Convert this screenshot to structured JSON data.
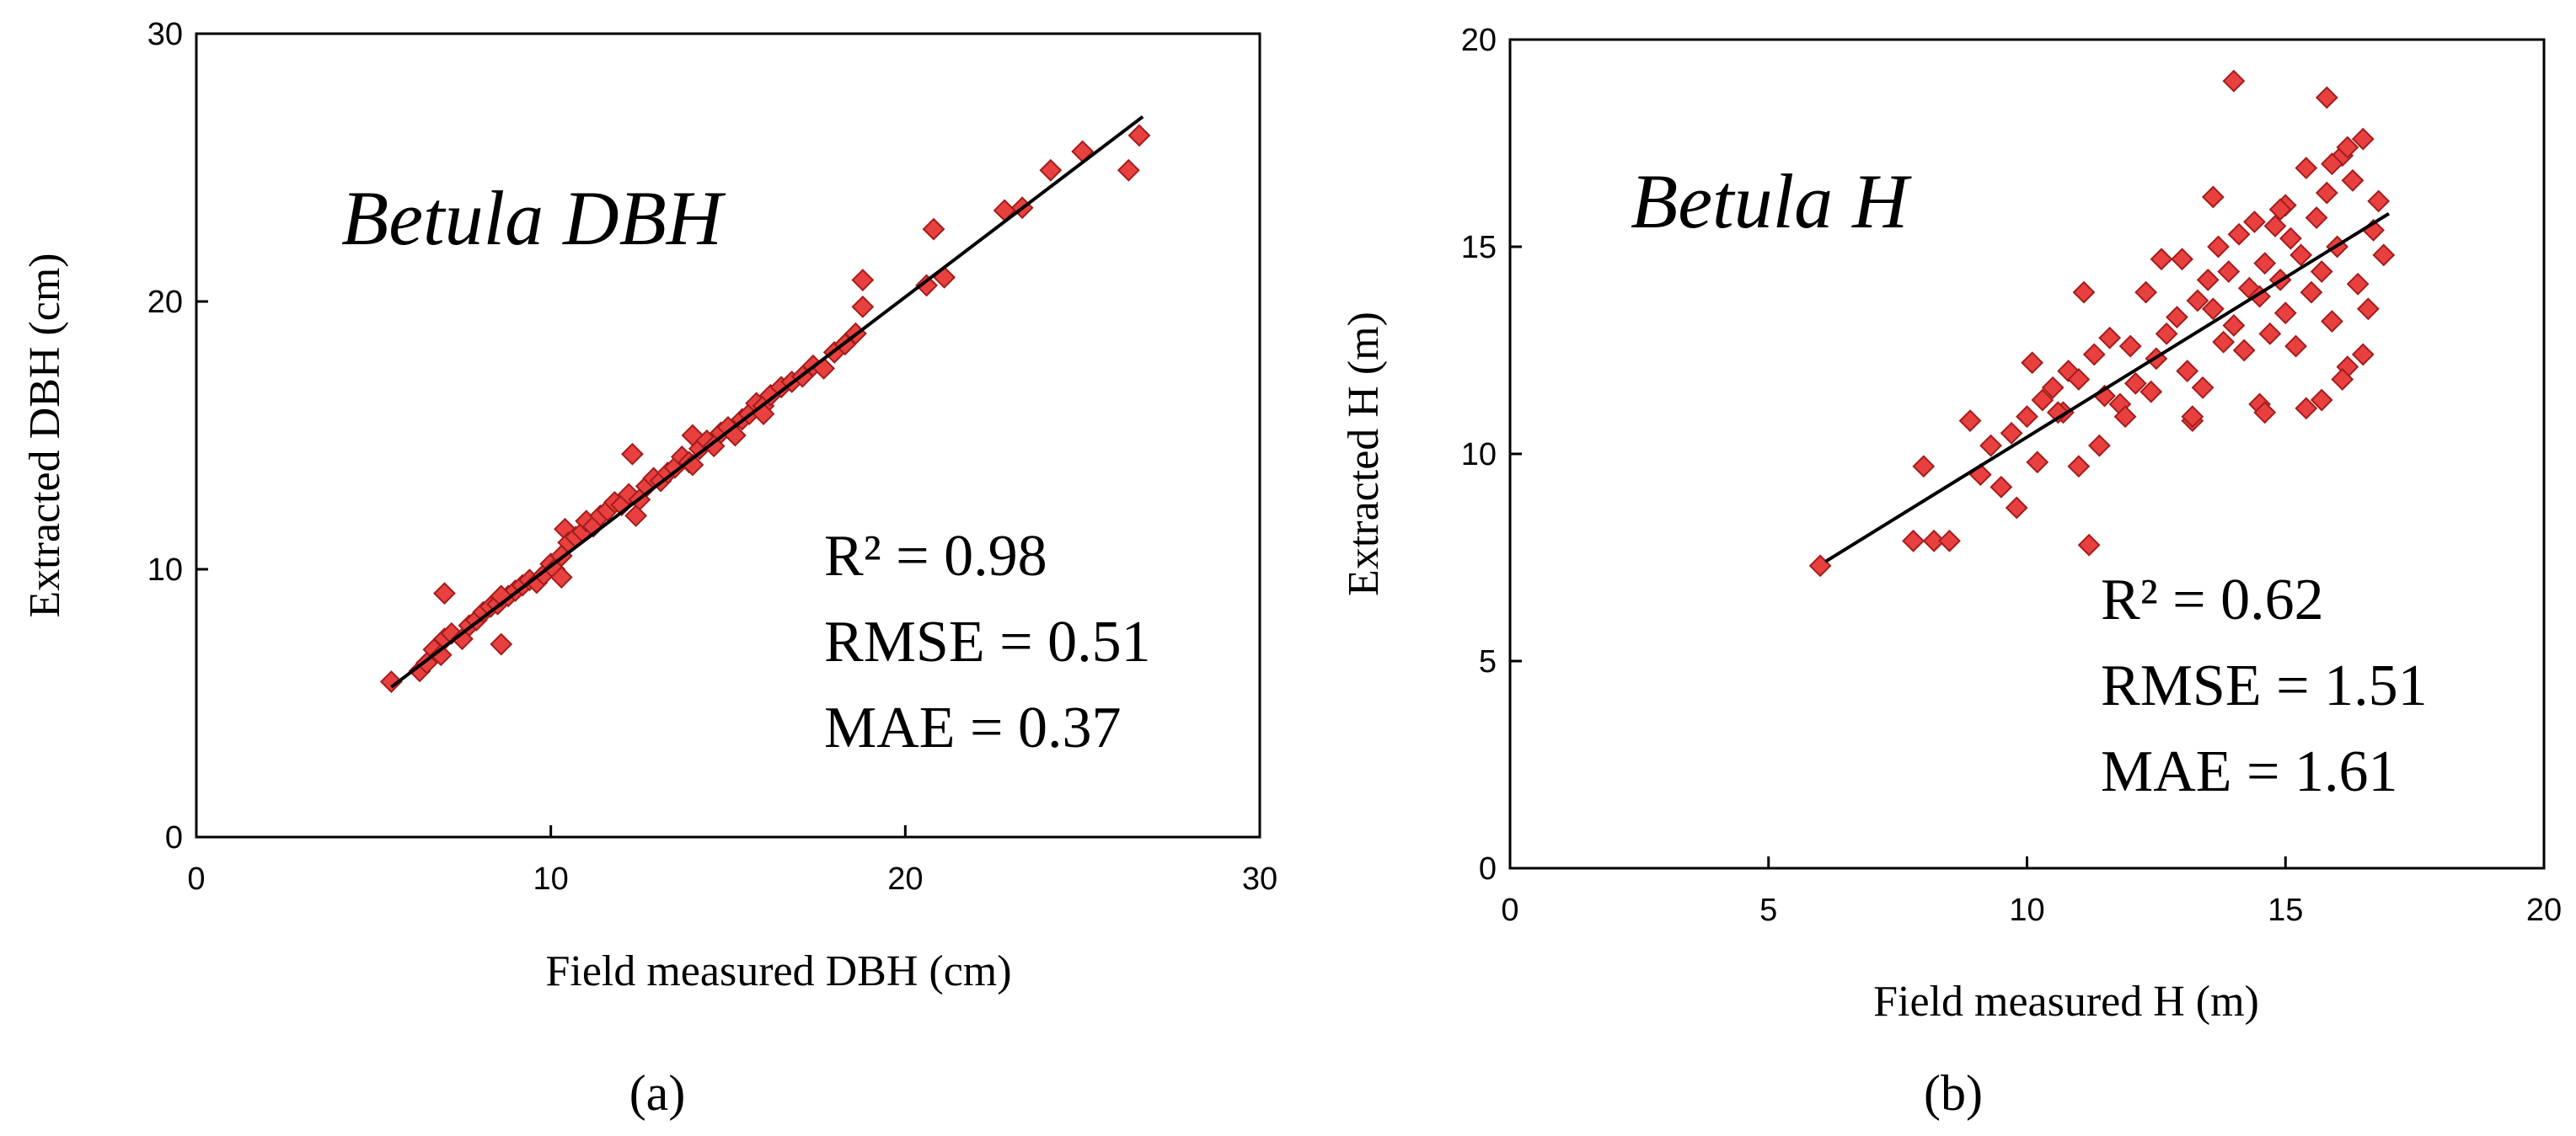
{
  "chart_data": [
    {
      "type": "scatter",
      "title": "Betula DBH",
      "xlabel": "Field measured DBH (cm)",
      "ylabel": "Extracted DBH (cm)",
      "xlim": [
        0,
        30
      ],
      "ylim": [
        0,
        30
      ],
      "xticks": [
        "0",
        "10",
        "20",
        "30"
      ],
      "yticks": [
        "0",
        "10",
        "20",
        "30"
      ],
      "panel_label": "(a)",
      "stats": {
        "r2": "R² = 0.98",
        "rmse": "RMSE = 0.51",
        "mae": "MAE = 0.37"
      },
      "trendline": {
        "x": [
          5.5,
          26.7
        ],
        "y": [
          5.6,
          26.9
        ]
      },
      "series": [
        {
          "name": "Betula DBH",
          "x": [
            5.5,
            6.3,
            6.5,
            6.7,
            6.9,
            7.0,
            7.2,
            7.5,
            7.7,
            7.9,
            8.1,
            8.3,
            8.5,
            8.6,
            8.8,
            9.0,
            9.2,
            9.4,
            9.6,
            9.8,
            10.0,
            10.1,
            10.3,
            10.4,
            10.5,
            10.7,
            10.9,
            11.0,
            11.2,
            11.4,
            11.6,
            11.8,
            12.0,
            12.2,
            12.3,
            12.5,
            12.7,
            12.9,
            13.1,
            13.3,
            13.5,
            13.7,
            13.9,
            14.0,
            14.2,
            14.4,
            14.6,
            14.8,
            15.0,
            15.2,
            15.4,
            15.6,
            15.8,
            16.0,
            16.2,
            16.5,
            16.8,
            17.1,
            17.4,
            17.7,
            18.0,
            18.3,
            18.6,
            18.8,
            18.8,
            20.6,
            20.8,
            21.1,
            22.8,
            23.3,
            24.1,
            25.0,
            26.3,
            26.6,
            7.0,
            8.6,
            10.3,
            12.4,
            14.0,
            16.0
          ],
          "y": [
            5.8,
            6.2,
            6.5,
            7.0,
            6.8,
            7.4,
            7.6,
            7.4,
            7.9,
            8.1,
            8.4,
            8.6,
            8.7,
            7.2,
            9.0,
            9.2,
            9.4,
            9.6,
            9.5,
            9.8,
            10.2,
            10.0,
            10.5,
            11.5,
            11.0,
            11.2,
            11.4,
            11.8,
            11.6,
            12.0,
            12.2,
            12.5,
            12.4,
            12.8,
            14.3,
            12.6,
            13.1,
            13.4,
            13.3,
            13.6,
            13.8,
            14.2,
            14.0,
            15.0,
            14.5,
            14.8,
            14.6,
            15.1,
            15.3,
            15.0,
            15.6,
            15.8,
            16.2,
            16.1,
            16.5,
            16.8,
            17.0,
            17.2,
            17.6,
            17.5,
            18.1,
            18.4,
            18.8,
            19.8,
            20.8,
            20.6,
            22.7,
            20.9,
            23.4,
            23.5,
            24.9,
            25.6,
            24.9,
            26.2,
            9.1,
            9.0,
            9.7,
            12.0,
            13.9,
            15.8
          ]
        }
      ]
    },
    {
      "type": "scatter",
      "title": "Betula H",
      "xlabel": "Field measured H (m)",
      "ylabel": "Extracted H (m)",
      "xlim": [
        0,
        20
      ],
      "ylim": [
        0,
        20
      ],
      "xticks": [
        "0",
        "5",
        "10",
        "15",
        "20"
      ],
      "yticks": [
        "0",
        "5",
        "10",
        "15",
        "20"
      ],
      "panel_label": "(b)",
      "stats": {
        "r2": "R² = 0.62",
        "rmse": "RMSE = 1.51",
        "mae": "MAE = 1.61"
      },
      "trendline": {
        "x": [
          6.1,
          17.0
        ],
        "y": [
          7.4,
          15.8
        ]
      },
      "series": [
        {
          "name": "Betula H",
          "x": [
            6.0,
            7.8,
            8.0,
            8.2,
            8.5,
            8.9,
            9.1,
            9.3,
            9.5,
            9.7,
            9.8,
            10.0,
            10.1,
            10.2,
            10.3,
            10.5,
            10.7,
            10.8,
            11.0,
            11.0,
            11.1,
            11.2,
            11.3,
            11.5,
            11.6,
            11.8,
            12.0,
            12.1,
            12.3,
            12.5,
            12.7,
            12.9,
            13.0,
            13.1,
            13.2,
            13.3,
            13.4,
            13.5,
            13.6,
            13.7,
            13.8,
            13.9,
            14.0,
            14.0,
            14.1,
            14.2,
            14.3,
            14.4,
            14.5,
            14.5,
            14.6,
            14.7,
            14.8,
            14.9,
            15.0,
            15.0,
            15.1,
            15.2,
            15.3,
            15.4,
            15.5,
            15.6,
            15.7,
            15.8,
            15.8,
            15.9,
            16.0,
            16.1,
            16.2,
            16.3,
            16.4,
            16.5,
            16.6,
            16.7,
            16.8,
            16.9,
            13.2,
            14.6,
            15.4,
            16.1,
            16.5,
            12.6,
            13.6,
            14.9,
            15.9,
            16.2,
            11.9,
            12.4,
            10.6,
            11.4,
            15.7
          ],
          "y": [
            7.3,
            7.9,
            9.7,
            7.9,
            7.9,
            10.8,
            9.5,
            10.2,
            9.2,
            10.5,
            8.7,
            10.9,
            12.2,
            9.8,
            11.3,
            11.6,
            11.0,
            12.0,
            11.8,
            9.7,
            13.9,
            7.8,
            12.4,
            11.4,
            12.8,
            11.2,
            12.6,
            11.7,
            13.9,
            12.3,
            12.9,
            13.3,
            14.7,
            12.0,
            10.8,
            13.7,
            11.6,
            14.2,
            13.5,
            15.0,
            12.7,
            14.4,
            19.0,
            13.1,
            15.3,
            12.5,
            14.0,
            15.6,
            11.2,
            13.8,
            14.6,
            12.9,
            15.5,
            14.2,
            13.4,
            16.0,
            15.2,
            12.6,
            14.8,
            16.9,
            13.9,
            15.7,
            14.4,
            18.6,
            16.3,
            13.2,
            15.0,
            17.2,
            12.1,
            16.6,
            14.1,
            17.6,
            13.5,
            15.4,
            16.1,
            14.8,
            10.9,
            11.0,
            11.1,
            11.8,
            12.4,
            14.7,
            16.2,
            15.9,
            17.0,
            17.4,
            10.9,
            11.5,
            11.0,
            10.2,
            11.3
          ]
        }
      ]
    }
  ]
}
